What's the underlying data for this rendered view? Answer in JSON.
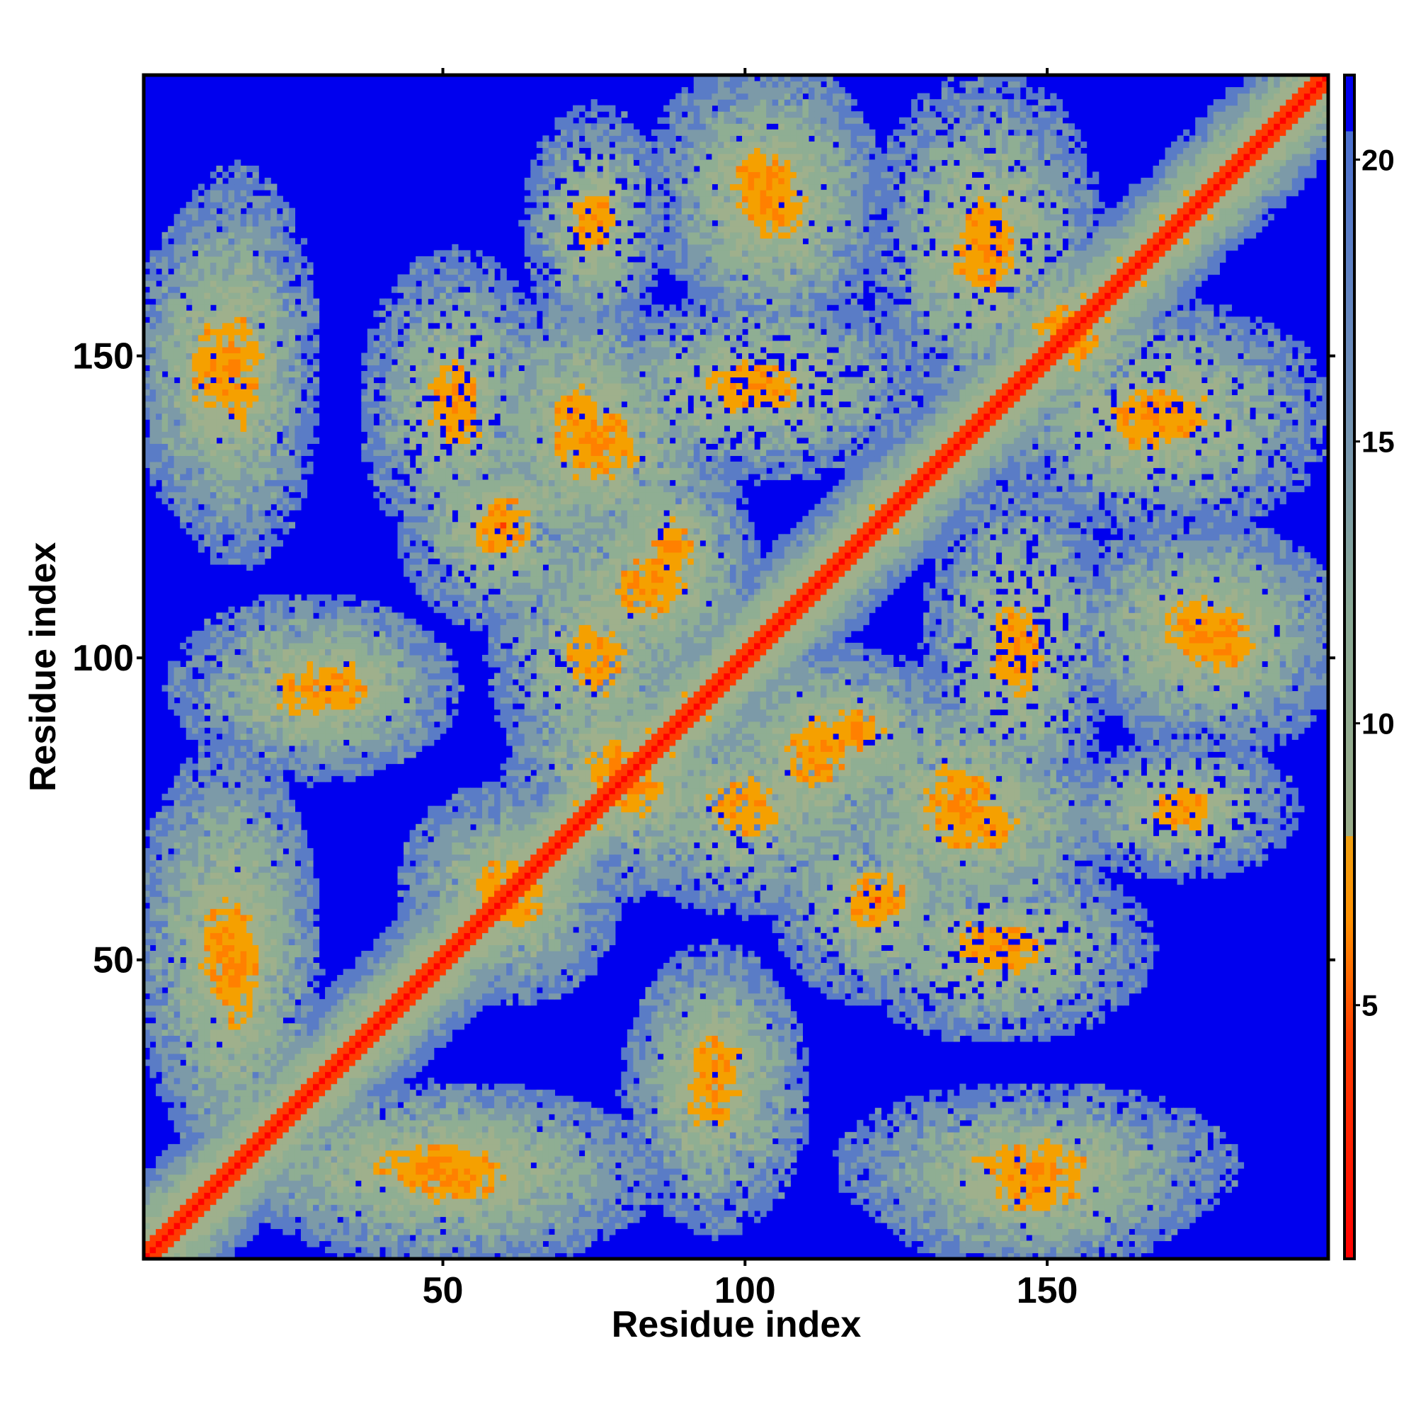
{
  "chart_data": {
    "type": "heatmap",
    "title": "",
    "xlabel": "Residue index",
    "ylabel": "Residue index",
    "xlim": [
      1,
      196
    ],
    "ylim": [
      1,
      196
    ],
    "x_ticks": [
      50,
      100,
      150
    ],
    "y_ticks": [
      50,
      100,
      150
    ],
    "x_tick_labels": [
      "50",
      "100",
      "150"
    ],
    "y_tick_labels": [
      "50",
      "100",
      "150"
    ],
    "colorbar": {
      "range": [
        0.5,
        21.5
      ],
      "ticks": [
        5,
        10,
        15,
        20
      ],
      "tick_labels": [
        "5",
        "10",
        "15",
        "20"
      ],
      "placement": "right",
      "stops": [
        {
          "value": 0.5,
          "color": "#ff0000"
        },
        {
          "value": 4.5,
          "color": "#ff4000"
        },
        {
          "value": 6.5,
          "color": "#ff9000"
        },
        {
          "value": 8.0,
          "color": "#f0a010"
        },
        {
          "value": 8.0,
          "color": "#9aad8a"
        },
        {
          "value": 12.0,
          "color": "#8aaa96"
        },
        {
          "value": 16.0,
          "color": "#6f8fb8"
        },
        {
          "value": 20.5,
          "color": "#4a6fd0"
        },
        {
          "value": 20.5,
          "color": "#0000ee"
        },
        {
          "value": 21.5,
          "color": "#0000ee"
        }
      ]
    },
    "background_color": "#0000ee",
    "matrix_size": 196,
    "description_values": {
      "diagonal_distance": 1,
      "near_diagonal_distance": 6,
      "contact_threshold": 8,
      "max_distance_shown": 21
    },
    "contact_features": [
      {
        "type": "helix-band",
        "from": [
          1,
          1
        ],
        "to": [
          196,
          196
        ],
        "width": 4
      },
      {
        "type": "cluster",
        "center": [
          12,
          148
        ],
        "size": [
          14,
          28
        ]
      },
      {
        "type": "cluster",
        "center": [
          14,
          52
        ],
        "size": [
          16,
          34
        ]
      },
      {
        "type": "cluster",
        "center": [
          28,
          95
        ],
        "size": [
          24,
          16
        ]
      },
      {
        "type": "cluster",
        "center": [
          48,
          16
        ],
        "size": [
          38,
          14
        ]
      },
      {
        "type": "cluster",
        "center": [
          60,
          62
        ],
        "size": [
          18,
          18
        ]
      },
      {
        "type": "cluster",
        "center": [
          72,
          138
        ],
        "size": [
          16,
          26
        ]
      },
      {
        "type": "cluster",
        "center": [
          75,
          100
        ],
        "size": [
          18,
          22
        ]
      },
      {
        "type": "cluster",
        "center": [
          82,
          78
        ],
        "size": [
          16,
          18
        ]
      },
      {
        "type": "cluster",
        "center": [
          88,
          118
        ],
        "size": [
          14,
          18
        ]
      },
      {
        "type": "cluster",
        "center": [
          95,
          33
        ],
        "size": [
          14,
          20
        ]
      },
      {
        "type": "cluster",
        "center": [
          103,
          178
        ],
        "size": [
          20,
          22
        ]
      },
      {
        "type": "cluster",
        "center": [
          112,
          84
        ],
        "size": [
          18,
          20
        ]
      },
      {
        "type": "cluster",
        "center": [
          122,
          60
        ],
        "size": [
          18,
          18
        ]
      },
      {
        "type": "cluster",
        "center": [
          135,
          77
        ],
        "size": [
          22,
          20
        ]
      },
      {
        "type": "cluster",
        "center": [
          142,
          52
        ],
        "size": [
          26,
          16
        ]
      },
      {
        "type": "cluster",
        "center": [
          145,
          102
        ],
        "size": [
          16,
          30
        ]
      },
      {
        "type": "cluster",
        "center": [
          148,
          16
        ],
        "size": [
          34,
          14
        ]
      },
      {
        "type": "cluster",
        "center": [
          155,
          152
        ],
        "size": [
          14,
          14
        ]
      },
      {
        "type": "cluster",
        "center": [
          168,
          140
        ],
        "size": [
          30,
          20
        ]
      },
      {
        "type": "cluster",
        "center": [
          175,
          105
        ],
        "size": [
          24,
          18
        ]
      },
      {
        "type": "cluster",
        "center": [
          172,
          75
        ],
        "size": [
          20,
          12
        ]
      }
    ]
  }
}
